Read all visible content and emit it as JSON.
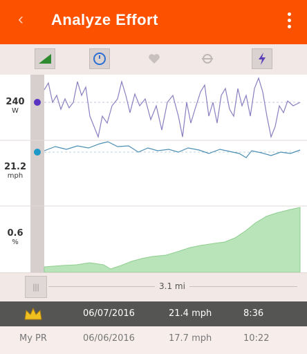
{
  "appbar": {
    "back_label": "‹",
    "title": "Analyze Effort"
  },
  "toolbar": {
    "items": [
      "elevation-graph-icon",
      "timer-icon",
      "heart-icon",
      "cadence-icon",
      "power-icon"
    ]
  },
  "chart": {
    "power": {
      "value": "240",
      "unit": "W",
      "color": "#7d6fb6"
    },
    "speed": {
      "value": "21.2",
      "unit": "mph",
      "color": "#4a8eb3"
    },
    "grade": {
      "value": "0.6",
      "unit": "%",
      "color": "#b8e2b8"
    }
  },
  "scrubber": {
    "distance": "3.1 mi"
  },
  "efforts": {
    "top": {
      "date": "06/07/2016",
      "speed": "21.4 mph",
      "time": "8:36"
    },
    "pr": {
      "label": "My PR",
      "date": "06/06/2016",
      "speed": "17.7 mph",
      "time": "10:22"
    }
  }
}
